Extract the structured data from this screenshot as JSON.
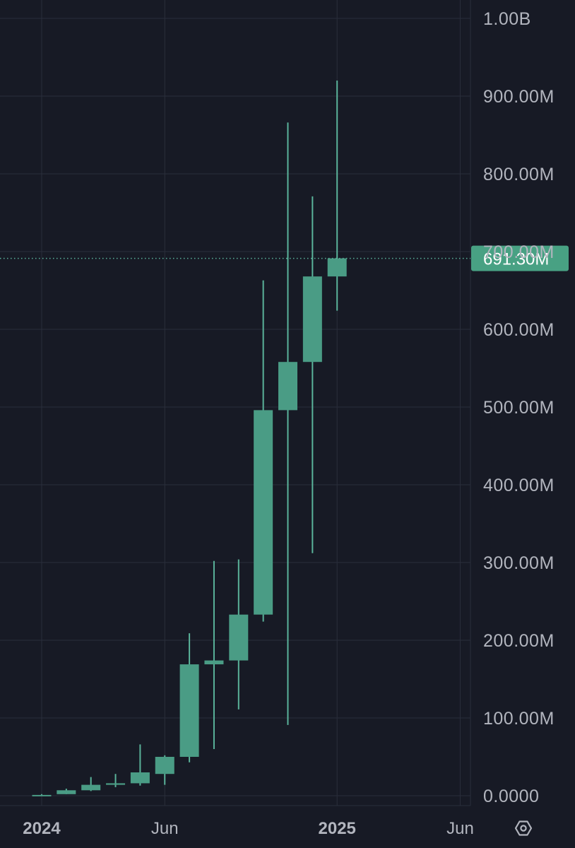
{
  "colors": {
    "background": "#171a25",
    "grid": "#2a2e3b",
    "candle_up": "#4a9c85",
    "wick": "#5ab39a",
    "label_text": "#b2b5be",
    "price_tag_bg": "#48a183",
    "price_tag_text": "#ffffff",
    "price_line": "#5ab39a"
  },
  "icons": {
    "settings": "hexagon-gear-icon"
  },
  "chart_data": {
    "type": "candlestick",
    "y_axis": {
      "ticks": [
        0,
        100000000,
        200000000,
        300000000,
        400000000,
        500000000,
        600000000,
        700000000,
        800000000,
        900000000,
        1000000000
      ],
      "tick_labels": [
        "0.0000",
        "100.00M",
        "200.00M",
        "300.00M",
        "400.00M",
        "500.00M",
        "600.00M",
        "700.00M",
        "800.00M",
        "900.00M",
        "1.00B"
      ],
      "ylim": [
        0,
        1000000000
      ],
      "side": "right"
    },
    "x_axis": {
      "labels": [
        {
          "text": "2024",
          "date": "2024-01",
          "bold": true
        },
        {
          "text": "Jun",
          "date": "2024-06",
          "bold": false
        },
        {
          "text": "2025",
          "date": "2025-01",
          "bold": true
        },
        {
          "text": "Jun",
          "date": "2025-06",
          "bold": false
        }
      ]
    },
    "current_price": {
      "value": 691300000,
      "label": "691.30M"
    },
    "candles": [
      {
        "date": "2024-01",
        "open": 0,
        "high": 2000000,
        "low": 0,
        "close": 1000000
      },
      {
        "date": "2024-02",
        "open": 2000000,
        "high": 9000000,
        "low": 2000000,
        "close": 7000000
      },
      {
        "date": "2024-03",
        "open": 7000000,
        "high": 24000000,
        "low": 6000000,
        "close": 14000000
      },
      {
        "date": "2024-04",
        "open": 14000000,
        "high": 28000000,
        "low": 11000000,
        "close": 16000000
      },
      {
        "date": "2024-05",
        "open": 16000000,
        "high": 66000000,
        "low": 13000000,
        "close": 30000000
      },
      {
        "date": "2024-06",
        "open": 28000000,
        "high": 52000000,
        "low": 14000000,
        "close": 50000000
      },
      {
        "date": "2024-07",
        "open": 50000000,
        "high": 209000000,
        "low": 43000000,
        "close": 169000000
      },
      {
        "date": "2024-08",
        "open": 169000000,
        "high": 302000000,
        "low": 60000000,
        "close": 174000000
      },
      {
        "date": "2024-09",
        "open": 174000000,
        "high": 304000000,
        "low": 111000000,
        "close": 233000000
      },
      {
        "date": "2024-10",
        "open": 233000000,
        "high": 663000000,
        "low": 224000000,
        "close": 496000000
      },
      {
        "date": "2024-11",
        "open": 496000000,
        "high": 866000000,
        "low": 91000000,
        "close": 558000000
      },
      {
        "date": "2024-12",
        "open": 558000000,
        "high": 771000000,
        "low": 312000000,
        "close": 668000000
      },
      {
        "date": "2025-01",
        "open": 668000000,
        "high": 920000000,
        "low": 624000000,
        "close": 691300000
      }
    ]
  }
}
